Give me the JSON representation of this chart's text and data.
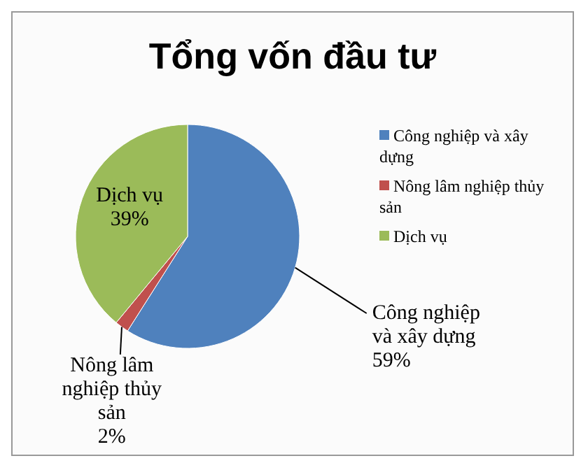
{
  "chart_data": {
    "type": "pie",
    "title": "Tổng vốn đầu tư",
    "categories": [
      "Công nghiệp và xây dựng",
      "Nông lâm nghiệp thủy sản",
      "Dịch vụ"
    ],
    "values": [
      59,
      2,
      39
    ],
    "colors": [
      "#4f81bd",
      "#c0504d",
      "#9bbb59"
    ],
    "value_labels": [
      "59%",
      "2%",
      "39%"
    ],
    "legend": "right"
  }
}
